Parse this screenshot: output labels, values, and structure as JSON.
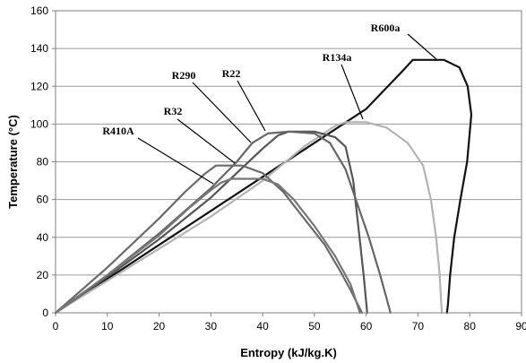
{
  "chart_data": {
    "type": "line",
    "xlabel": "Entropy (kJ/kg.K)",
    "ylabel": "Temperature (°C)",
    "xlim": [
      0,
      90
    ],
    "ylim": [
      0,
      160
    ],
    "xticks": [
      0,
      10,
      20,
      30,
      40,
      50,
      60,
      70,
      80,
      90
    ],
    "yticks": [
      0,
      20,
      40,
      60,
      80,
      100,
      120,
      140,
      160
    ],
    "grid": "horizontal",
    "legend": "none (curves labelled directly with leader lines)",
    "series": [
      {
        "name": "R600a",
        "color": "#111111",
        "points": [
          [
            0,
            0
          ],
          [
            10,
            18
          ],
          [
            20,
            36
          ],
          [
            30,
            54
          ],
          [
            40,
            72
          ],
          [
            50,
            90
          ],
          [
            60,
            108
          ],
          [
            67,
            128
          ],
          [
            69,
            134
          ],
          [
            75,
            134
          ],
          [
            78,
            130
          ],
          [
            79.6,
            120
          ],
          [
            80.3,
            105
          ],
          [
            79.5,
            80
          ],
          [
            78.2,
            60
          ],
          [
            77.0,
            40
          ],
          [
            76.2,
            20
          ],
          [
            75.8,
            5
          ],
          [
            75.6,
            0
          ]
        ]
      },
      {
        "name": "R134a",
        "color": "#b3b3b3",
        "points": [
          [
            0,
            0
          ],
          [
            10,
            17
          ],
          [
            20,
            34
          ],
          [
            30,
            51
          ],
          [
            40,
            70
          ],
          [
            48,
            88
          ],
          [
            54,
            99
          ],
          [
            56,
            101
          ],
          [
            60,
            101
          ],
          [
            64,
            98
          ],
          [
            68,
            90
          ],
          [
            71,
            78
          ],
          [
            72.5,
            60
          ],
          [
            73.5,
            40
          ],
          [
            74.2,
            20
          ],
          [
            74.6,
            0
          ]
        ]
      },
      {
        "name": "R22",
        "color": "#555555",
        "points": [
          [
            0,
            0
          ],
          [
            10,
            19
          ],
          [
            20,
            39
          ],
          [
            30,
            61
          ],
          [
            35,
            74
          ],
          [
            40,
            87
          ],
          [
            43,
            94
          ],
          [
            45,
            96
          ],
          [
            50,
            96
          ],
          [
            54,
            93
          ],
          [
            56,
            88
          ],
          [
            57.5,
            70
          ],
          [
            58.7,
            40
          ],
          [
            59.5,
            20
          ],
          [
            60.2,
            0
          ]
        ]
      },
      {
        "name": "R290",
        "color": "#666666",
        "points": [
          [
            0,
            0
          ],
          [
            10,
            20
          ],
          [
            20,
            42
          ],
          [
            30,
            66
          ],
          [
            35,
            80
          ],
          [
            38,
            90
          ],
          [
            41,
            95
          ],
          [
            45,
            96
          ],
          [
            50,
            95
          ],
          [
            53,
            90
          ],
          [
            56,
            76
          ],
          [
            58,
            60
          ],
          [
            60.5,
            40
          ],
          [
            62.7,
            20
          ],
          [
            64.7,
            0
          ]
        ]
      },
      {
        "name": "R32",
        "color": "#6a6a6a",
        "points": [
          [
            0,
            0
          ],
          [
            10,
            24
          ],
          [
            20,
            50
          ],
          [
            25,
            64
          ],
          [
            29,
            74
          ],
          [
            31,
            78
          ],
          [
            36,
            78
          ],
          [
            40,
            74
          ],
          [
            44,
            64
          ],
          [
            48,
            50
          ],
          [
            52,
            36
          ],
          [
            55,
            22
          ],
          [
            57,
            12
          ],
          [
            59.2,
            0
          ]
        ]
      },
      {
        "name": "R410A",
        "color": "#777777",
        "points": [
          [
            0,
            0
          ],
          [
            10,
            20
          ],
          [
            20,
            41
          ],
          [
            26,
            56
          ],
          [
            30,
            65
          ],
          [
            32,
            69
          ],
          [
            34,
            71
          ],
          [
            40,
            71
          ],
          [
            43,
            68
          ],
          [
            46,
            60
          ],
          [
            50,
            46
          ],
          [
            54,
            30
          ],
          [
            57,
            15
          ],
          [
            58.8,
            0
          ]
        ]
      }
    ],
    "labels": [
      {
        "text": "R600a",
        "series": "R600a"
      },
      {
        "text": "R134a",
        "series": "R134a"
      },
      {
        "text": "R22",
        "series": "R22"
      },
      {
        "text": "R290",
        "series": "R290"
      },
      {
        "text": "R32",
        "series": "R32"
      },
      {
        "text": "R410A",
        "series": "R410A"
      }
    ]
  }
}
